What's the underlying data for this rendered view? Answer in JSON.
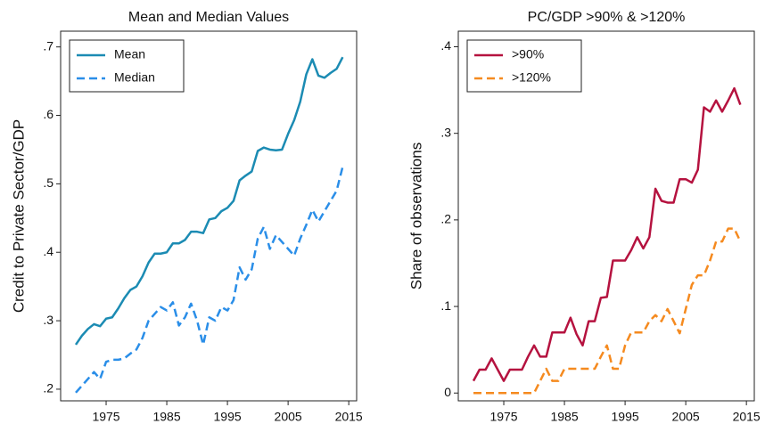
{
  "chart_data": [
    {
      "type": "line",
      "title": "Mean and Median Values",
      "ylabel": "Credit to Private Sector/GDP",
      "x": [
        1970,
        1971,
        1972,
        1973,
        1974,
        1975,
        1976,
        1977,
        1978,
        1979,
        1980,
        1981,
        1982,
        1983,
        1984,
        1985,
        1986,
        1987,
        1988,
        1989,
        1990,
        1991,
        1992,
        1993,
        1994,
        1995,
        1996,
        1997,
        1998,
        1999,
        2000,
        2001,
        2002,
        2003,
        2004,
        2005,
        2006,
        2007,
        2008,
        2009,
        2010,
        2011,
        2012,
        2013,
        2014
      ],
      "series": [
        {
          "name": "Mean",
          "color": "#1b8bb3",
          "dash": false,
          "values": [
            0.265,
            0.278,
            0.288,
            0.295,
            0.292,
            0.303,
            0.305,
            0.318,
            0.333,
            0.345,
            0.35,
            0.365,
            0.385,
            0.398,
            0.398,
            0.4,
            0.413,
            0.413,
            0.418,
            0.43,
            0.43,
            0.428,
            0.448,
            0.45,
            0.46,
            0.465,
            0.475,
            0.505,
            0.512,
            0.518,
            0.548,
            0.553,
            0.55,
            0.549,
            0.55,
            0.573,
            0.593,
            0.62,
            0.66,
            0.682,
            0.658,
            0.655,
            0.662,
            0.668,
            0.685
          ]
        },
        {
          "name": "Median",
          "color": "#2a8ee8",
          "dash": true,
          "values": [
            0.195,
            0.205,
            0.215,
            0.225,
            0.215,
            0.24,
            0.243,
            0.243,
            0.245,
            0.252,
            0.258,
            0.275,
            0.3,
            0.31,
            0.32,
            0.315,
            0.327,
            0.293,
            0.305,
            0.325,
            0.3,
            0.265,
            0.305,
            0.3,
            0.32,
            0.315,
            0.33,
            0.378,
            0.36,
            0.375,
            0.42,
            0.437,
            0.405,
            0.425,
            0.415,
            0.405,
            0.395,
            0.42,
            0.44,
            0.462,
            0.445,
            0.46,
            0.475,
            0.49,
            0.525
          ]
        }
      ],
      "xlim": [
        1967.5,
        2016.3
      ],
      "ylim": [
        0.183,
        0.723
      ],
      "xticks": [
        1975,
        1985,
        1995,
        2005,
        2015
      ],
      "yticks": [
        {
          "value": 0.2,
          "label": ".2"
        },
        {
          "value": 0.3,
          "label": ".3"
        },
        {
          "value": 0.4,
          "label": ".4"
        },
        {
          "value": 0.5,
          "label": ".5"
        },
        {
          "value": 0.6,
          "label": ".6"
        },
        {
          "value": 0.7,
          "label": ".7"
        }
      ],
      "legend": "top-left"
    },
    {
      "type": "line",
      "title": "PC/GDP >90% & >120%",
      "ylabel": "Share of observations",
      "x": [
        1970,
        1971,
        1972,
        1973,
        1974,
        1975,
        1976,
        1977,
        1978,
        1979,
        1980,
        1981,
        1982,
        1983,
        1984,
        1985,
        1986,
        1987,
        1988,
        1989,
        1990,
        1991,
        1992,
        1993,
        1994,
        1995,
        1996,
        1997,
        1998,
        1999,
        2000,
        2001,
        2002,
        2003,
        2004,
        2005,
        2006,
        2007,
        2008,
        2009,
        2010,
        2011,
        2012,
        2013,
        2014
      ],
      "series": [
        {
          "name": ">90%",
          "color": "#b5123f",
          "dash": false,
          "values": [
            0.014,
            0.027,
            0.027,
            0.04,
            0.027,
            0.014,
            0.027,
            0.027,
            0.027,
            0.042,
            0.055,
            0.042,
            0.042,
            0.07,
            0.07,
            0.07,
            0.087,
            0.068,
            0.055,
            0.083,
            0.083,
            0.11,
            0.111,
            0.153,
            0.153,
            0.153,
            0.165,
            0.18,
            0.167,
            0.18,
            0.236,
            0.222,
            0.22,
            0.22,
            0.247,
            0.247,
            0.243,
            0.258,
            0.33,
            0.325,
            0.338,
            0.325,
            0.338,
            0.352,
            0.333
          ]
        },
        {
          "name": ">120%",
          "color": "#f58a1f",
          "dash": true,
          "values": [
            0,
            0,
            0,
            0,
            0,
            0,
            0,
            0,
            0,
            0,
            0,
            0.014,
            0.028,
            0.014,
            0.014,
            0.028,
            0.028,
            0.028,
            0.028,
            0.028,
            0.028,
            0.042,
            0.055,
            0.028,
            0.028,
            0.055,
            0.07,
            0.07,
            0.07,
            0.083,
            0.09,
            0.083,
            0.097,
            0.083,
            0.069,
            0.097,
            0.125,
            0.136,
            0.136,
            0.153,
            0.175,
            0.175,
            0.19,
            0.19,
            0.175
          ]
        }
      ],
      "xlim": [
        1967.5,
        2016.3
      ],
      "ylim": [
        -0.009,
        0.418
      ],
      "xticks": [
        1975,
        1985,
        1995,
        2005,
        2015
      ],
      "yticks": [
        0,
        {
          "value": 0.1,
          "label": ".1"
        },
        {
          "value": 0.2,
          "label": ".2"
        },
        {
          "value": 0.3,
          "label": ".3"
        },
        {
          "value": 0.4,
          "label": ".4"
        }
      ],
      "legend": "top-left"
    }
  ]
}
